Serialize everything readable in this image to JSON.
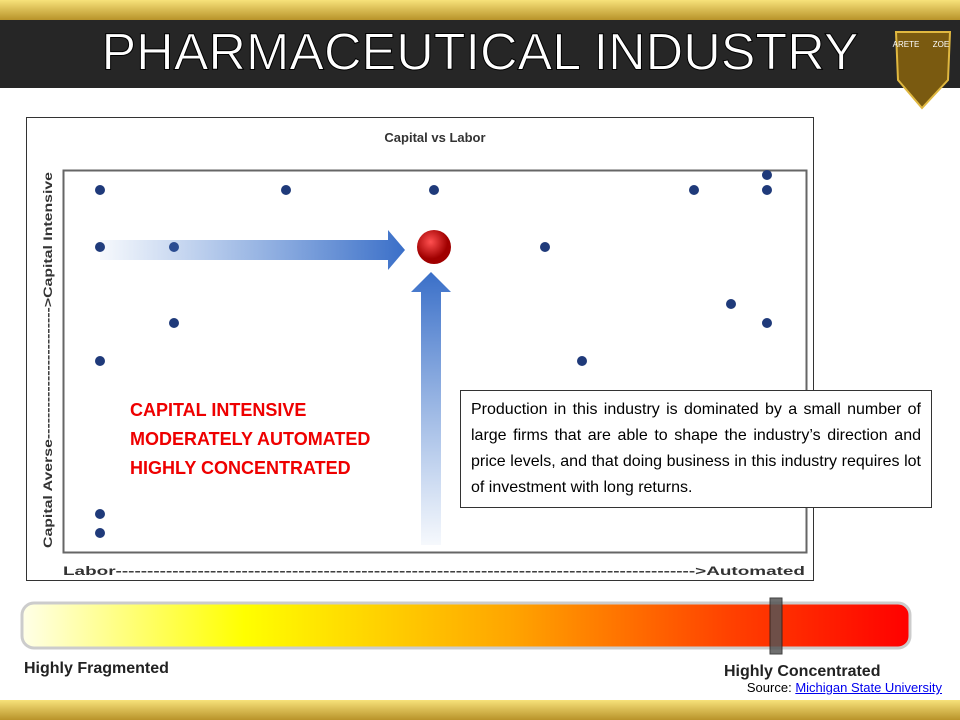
{
  "header": {
    "title": "PHARMACEUTICAL INDUSTRY",
    "logo": [
      "ARETE",
      "ZOE"
    ]
  },
  "chart": {
    "title": "Capital vs Labor",
    "x_label": "Labor-------------------------------------------------------------------------------------------->Automated",
    "y_label": "Capital Averse------------------------->Capital Intensive"
  },
  "callout": [
    "CAPITAL INTENSIVE",
    "MODERATELY AUTOMATED",
    "HIGHLY CONCENTRATED"
  ],
  "description": "Production in this industry is dominated by a small number of large firms that are able to shape the industry’s direction and price levels, and that doing business in this industry requires lot of investment with long returns.",
  "scale": {
    "left": "Highly Fragmented",
    "right": "Highly Concentrated"
  },
  "source": {
    "label": "Source:",
    "link": "Michigan State University"
  }
}
